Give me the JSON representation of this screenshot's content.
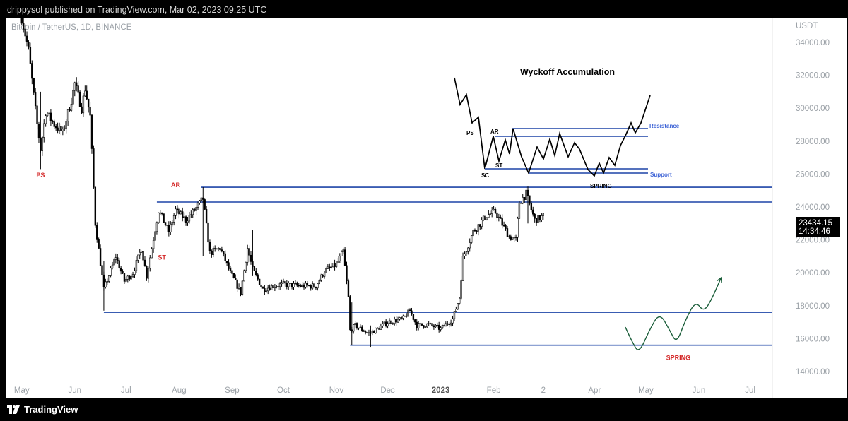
{
  "header": {
    "publish_text": "drippysol published on TradingView.com, Mar 02, 2023 09:25 UTC"
  },
  "footer": {
    "brand": "TradingView"
  },
  "chart_data": {
    "type": "candlestick",
    "symbol_label": "Bitcoin / TetherUS, 1D, BINANCE",
    "currency": "USDT",
    "y_ticks": [
      "34000.00",
      "32000.00",
      "30000.00",
      "28000.00",
      "26000.00",
      "24000.00",
      "22000.00",
      "20000.00",
      "18000.00",
      "16000.00",
      "14000.00"
    ],
    "x_ticks": [
      "May",
      "Jun",
      "Jul",
      "Aug",
      "Sep",
      "Oct",
      "Nov",
      "Dec",
      "2023",
      "Feb",
      "2",
      "Apr",
      "May",
      "Jun",
      "Jul"
    ],
    "ylim": [
      13000,
      35800
    ],
    "last_price": "23434.15",
    "countdown": "14:34:46",
    "price_path": [
      [
        "2022-05-01",
        35500
      ],
      [
        "2022-05-05",
        33500
      ],
      [
        "2022-05-10",
        29000
      ],
      [
        "2022-05-12",
        27500
      ],
      [
        "2022-05-15",
        29800
      ],
      [
        "2022-05-20",
        29000
      ],
      [
        "2022-05-25",
        28500
      ],
      [
        "2022-05-30",
        30500
      ],
      [
        "2022-06-01",
        31500
      ],
      [
        "2022-06-05",
        30000
      ],
      [
        "2022-06-07",
        31200
      ],
      [
        "2022-06-10",
        29500
      ],
      [
        "2022-06-13",
        23000
      ],
      [
        "2022-06-14",
        22200
      ],
      [
        "2022-06-18",
        19000
      ],
      [
        "2022-06-25",
        21000
      ],
      [
        "2022-06-30",
        19500
      ],
      [
        "2022-07-05",
        20000
      ],
      [
        "2022-07-10",
        21500
      ],
      [
        "2022-07-13",
        19800
      ],
      [
        "2022-07-20",
        23800
      ],
      [
        "2022-07-26",
        22500
      ],
      [
        "2022-07-30",
        23800
      ],
      [
        "2022-08-05",
        23200
      ],
      [
        "2022-08-10",
        23800
      ],
      [
        "2022-08-15",
        24500
      ],
      [
        "2022-08-19",
        21200
      ],
      [
        "2022-08-25",
        21500
      ],
      [
        "2022-08-31",
        20000
      ],
      [
        "2022-09-06",
        18800
      ],
      [
        "2022-09-10",
        21500
      ],
      [
        "2022-09-13",
        20200
      ],
      [
        "2022-09-19",
        19000
      ],
      [
        "2022-09-25",
        19200
      ],
      [
        "2022-10-01",
        19300
      ],
      [
        "2022-10-10",
        19200
      ],
      [
        "2022-10-20",
        19200
      ],
      [
        "2022-10-25",
        20100
      ],
      [
        "2022-11-01",
        20500
      ],
      [
        "2022-11-05",
        21300
      ],
      [
        "2022-11-08",
        18500
      ],
      [
        "2022-11-09",
        16500
      ],
      [
        "2022-11-12",
        16800
      ],
      [
        "2022-11-20",
        16300
      ],
      [
        "2022-11-25",
        16600
      ],
      [
        "2022-12-01",
        17000
      ],
      [
        "2022-12-10",
        17200
      ],
      [
        "2022-12-14",
        17700
      ],
      [
        "2022-12-18",
        16800
      ],
      [
        "2022-12-25",
        16850
      ],
      [
        "2023-01-01",
        16600
      ],
      [
        "2023-01-08",
        17200
      ],
      [
        "2023-01-12",
        18500
      ],
      [
        "2023-01-14",
        20900
      ],
      [
        "2023-01-20",
        22500
      ],
      [
        "2023-01-28",
        23500
      ],
      [
        "2023-02-02",
        23700
      ],
      [
        "2023-02-10",
        22200
      ],
      [
        "2023-02-14",
        22000
      ],
      [
        "2023-02-16",
        24300
      ],
      [
        "2023-02-20",
        24800
      ],
      [
        "2023-02-25",
        23200
      ],
      [
        "2023-03-02",
        23434
      ]
    ],
    "extra_wicks": [
      [
        "2022-05-12",
        26300,
        31000
      ],
      [
        "2022-06-18",
        17700,
        20700
      ],
      [
        "2022-08-15",
        21000,
        25200
      ],
      [
        "2022-09-13",
        19800,
        22600
      ],
      [
        "2022-11-10",
        15600,
        18200
      ],
      [
        "2022-11-21",
        15500,
        16800
      ],
      [
        "2023-02-21",
        23000,
        25200
      ]
    ],
    "horizontal_levels": [
      {
        "price": 25200,
        "from": "2022-08-14"
      },
      {
        "price": 24300,
        "from": "2022-07-19"
      },
      {
        "price": 17600,
        "from": "2022-06-18"
      },
      {
        "price": 15600,
        "from": "2022-11-09"
      }
    ],
    "annotations": [
      {
        "label": "PS",
        "date": "2022-05-12",
        "price": 25800
      },
      {
        "label": "AR",
        "date": "2022-07-30",
        "price": 25200
      },
      {
        "label": "ST",
        "date": "2022-07-22",
        "price": 20800
      },
      {
        "label": "SPRING",
        "date": "2023-05-20",
        "price": 14700
      }
    ],
    "projection_path": [
      [
        "2023-04-19",
        16700
      ],
      [
        "2023-04-23",
        15800
      ],
      [
        "2023-04-27",
        15100
      ],
      [
        "2023-05-03",
        16500
      ],
      [
        "2023-05-09",
        17600
      ],
      [
        "2023-05-15",
        16500
      ],
      [
        "2023-05-19",
        15700
      ],
      [
        "2023-05-24",
        17100
      ],
      [
        "2023-05-30",
        18300
      ],
      [
        "2023-06-04",
        17600
      ],
      [
        "2023-06-09",
        18500
      ],
      [
        "2023-06-14",
        19700
      ]
    ],
    "inset": {
      "title": "Wyckoff Accumulation",
      "labels": {
        "ps": "PS",
        "ar": "AR",
        "st": "ST",
        "sc": "SC",
        "spring": "SPRING",
        "resistance": "Resistance",
        "support": "Support"
      }
    }
  }
}
